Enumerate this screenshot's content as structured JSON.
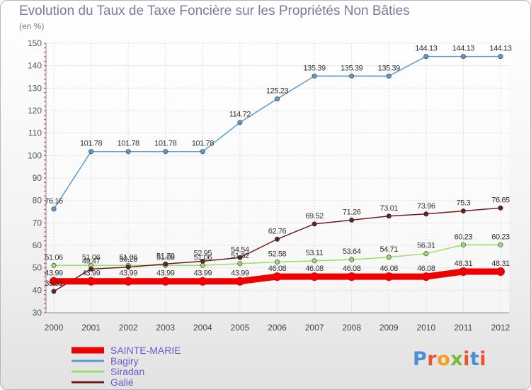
{
  "chart": {
    "title": "Evolution du Taux de Taxe Foncière sur les Propriétés Non Bâties",
    "unit_label": "(en %)"
  },
  "logo": {
    "text": "Proxiti",
    "colors": [
      "#4a8fd6",
      "#e9542a",
      "#f2a01c",
      "#7ab83d",
      "#e9542a",
      "#4a8fd6",
      "#e9542a"
    ]
  },
  "chart_data": {
    "type": "line",
    "title": "Evolution du Taux de Taxe Foncière sur les Propriétés Non Bâties",
    "ylabel": "(en %)",
    "xlabel": "",
    "x": [
      "2000",
      "2001",
      "2002",
      "2003",
      "2004",
      "2005",
      "2006",
      "2007",
      "2008",
      "2009",
      "2010",
      "2011",
      "2012"
    ],
    "ylim": [
      30,
      150
    ],
    "yticks": [
      30,
      40,
      50,
      60,
      70,
      80,
      90,
      100,
      110,
      120,
      130,
      140,
      150
    ],
    "grid": true,
    "legend": "bottom-left",
    "series": [
      {
        "name": "SAINTE-MARIE",
        "color": "#ee0000",
        "emphasis": true,
        "values": [
          43.99,
          43.99,
          43.99,
          43.99,
          43.99,
          43.99,
          46.08,
          46.08,
          46.08,
          46.08,
          46.08,
          48.31,
          48.31
        ],
        "labels": [
          "43.99",
          "43.99",
          "43.99",
          "43.99",
          "43.99",
          "43.99",
          "46.08",
          "46.08",
          "46.08",
          "46.08",
          "46.08",
          "48.31",
          "48.31"
        ]
      },
      {
        "name": "Bagiry",
        "color": "#5b9bd0",
        "values": [
          76.16,
          101.78,
          101.78,
          101.78,
          101.78,
          114.72,
          125.23,
          135.39,
          135.39,
          135.39,
          144.13,
          144.13,
          144.13
        ],
        "labels": [
          "76.16",
          "101.78",
          "101.78",
          "101.78",
          "101.78",
          "114.72",
          "125.23",
          "135.39",
          "135.39",
          "135.39",
          "144.13",
          "144.13",
          "144.13"
        ]
      },
      {
        "name": "Siradan",
        "color": "#99dd66",
        "values": [
          51.06,
          51.06,
          51.06,
          51.06,
          51.06,
          51.82,
          52.58,
          53.11,
          53.64,
          54.71,
          56.31,
          60.23,
          60.23
        ],
        "labels": [
          "51.06",
          "51.06",
          "51.06",
          "51.06",
          "51.06",
          "51.82",
          "52.58",
          "53.11",
          "53.64",
          "54.71",
          "56.31",
          "60.23",
          "60.23"
        ]
      },
      {
        "name": "Galié",
        "color": "#6b2020",
        "values": [
          39.51,
          49.47,
          50.28,
          51.7,
          52.95,
          54.54,
          62.76,
          69.52,
          71.26,
          73.01,
          73.96,
          75.3,
          76.65
        ],
        "labels": [
          "39.51",
          "49.47",
          "50.28",
          "51.70",
          "52.95",
          "54.54",
          "62.76",
          "69.52",
          "71.26",
          "73.01",
          "73.96",
          "75.3",
          "76.65"
        ]
      }
    ]
  }
}
